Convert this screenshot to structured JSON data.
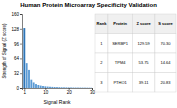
{
  "chart_data": {
    "type": "bar",
    "title": "Human Protein Microarray Specificity Validation",
    "xlabel": "Signal Rank",
    "ylabel": "Strength of Signal (Z score)",
    "x": [
      1,
      2,
      3,
      4,
      5,
      6,
      7,
      8,
      9,
      10,
      11,
      12,
      13,
      14,
      15,
      16,
      17,
      18,
      19,
      20,
      21,
      22,
      23,
      24,
      25,
      26,
      27,
      28,
      29,
      30
    ],
    "values": [
      129.59,
      53.75,
      39.11,
      18.0,
      12.0,
      8.5,
      6.5,
      5.2,
      4.3,
      3.6,
      3.1,
      2.7,
      2.4,
      2.1,
      1.9,
      1.7,
      1.5,
      1.4,
      1.3,
      1.2,
      1.1,
      1.0,
      0.95,
      0.9,
      0.85,
      0.8,
      0.75,
      0.7,
      0.65,
      0.6
    ],
    "colors": [
      "#2e75b6",
      "#5b9bd5",
      "#5b9bd5",
      "#5b9bd5",
      "#5b9bd5",
      "#5b9bd5",
      "#5b9bd5",
      "#5b9bd5",
      "#5b9bd5",
      "#5b9bd5",
      "#5b9bd5",
      "#5b9bd5",
      "#5b9bd5",
      "#5b9bd5",
      "#5b9bd5",
      "#5b9bd5",
      "#5b9bd5",
      "#5b9bd5",
      "#5b9bd5",
      "#5b9bd5",
      "#5b9bd5",
      "#5b9bd5",
      "#5b9bd5",
      "#5b9bd5",
      "#5b9bd5",
      "#5b9bd5",
      "#5b9bd5",
      "#5b9bd5",
      "#5b9bd5",
      "#5b9bd5"
    ],
    "xlim": [
      0,
      30
    ],
    "ylim": [
      0,
      160
    ],
    "xticks": [
      1,
      10,
      20,
      30
    ],
    "yticks": [
      0,
      32,
      64,
      96,
      128,
      160
    ],
    "grid": false,
    "table": [
      [
        "Rank",
        "Protein",
        "Z score",
        "S score"
      ],
      [
        "1",
        "SERBP1",
        "129.59",
        "70.30"
      ],
      [
        "2",
        "TPM4",
        "53.75",
        "14.64"
      ],
      [
        "3",
        "PTHO1",
        "39.11",
        "20.83"
      ]
    ]
  }
}
